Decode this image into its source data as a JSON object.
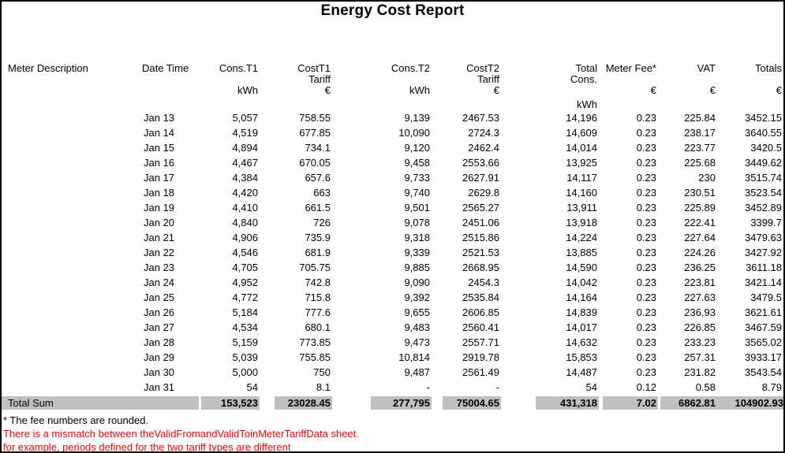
{
  "title": "Energy Cost Report",
  "colors": {
    "total_row_bg": "#c0c0c0",
    "warning_text": "#ff0000",
    "page_border": "#000000"
  },
  "table": {
    "headers": {
      "meter_description": "Meter Description",
      "date_time": "Date Time",
      "cons_t1": "Cons.T1",
      "cost_t1_line1": "CostT1",
      "cost_t1_line2": "Tariff",
      "cons_t2": "Cons.T2",
      "cost_t2_line1": "CostT2",
      "cost_t2_line2": "Tariff",
      "total_line1": "Total",
      "total_line2": "Cons.",
      "meter_fee": "Meter Fee*",
      "vat": "VAT",
      "totals": "Totals",
      "unit_kwh": "kWh",
      "unit_eur": "€"
    },
    "rows": [
      {
        "date": "Jan 13",
        "cons_t1": "5,057",
        "cost_t1": "758.55",
        "cons_t2": "9,139",
        "cost_t2": "2467.53",
        "total_cons": "14,196",
        "meter_fee": "0.23",
        "vat": "225.84",
        "totals": "3452.15"
      },
      {
        "date": "Jan 14",
        "cons_t1": "4,519",
        "cost_t1": "677.85",
        "cons_t2": "10,090",
        "cost_t2": "2724.3",
        "total_cons": "14,609",
        "meter_fee": "0.23",
        "vat": "238.17",
        "totals": "3640.55"
      },
      {
        "date": "Jan 15",
        "cons_t1": "4,894",
        "cost_t1": "734.1",
        "cons_t2": "9,120",
        "cost_t2": "2462.4",
        "total_cons": "14,014",
        "meter_fee": "0.23",
        "vat": "223.77",
        "totals": "3420.5"
      },
      {
        "date": "Jan 16",
        "cons_t1": "4,467",
        "cost_t1": "670.05",
        "cons_t2": "9,458",
        "cost_t2": "2553.66",
        "total_cons": "13,925",
        "meter_fee": "0.23",
        "vat": "225.68",
        "totals": "3449.62"
      },
      {
        "date": "Jan 17",
        "cons_t1": "4,384",
        "cost_t1": "657.6",
        "cons_t2": "9,733",
        "cost_t2": "2627.91",
        "total_cons": "14,117",
        "meter_fee": "0.23",
        "vat": "230",
        "totals": "3515.74"
      },
      {
        "date": "Jan 18",
        "cons_t1": "4,420",
        "cost_t1": "663",
        "cons_t2": "9,740",
        "cost_t2": "2629.8",
        "total_cons": "14,160",
        "meter_fee": "0.23",
        "vat": "230.51",
        "totals": "3523.54"
      },
      {
        "date": "Jan 19",
        "cons_t1": "4,410",
        "cost_t1": "661.5",
        "cons_t2": "9,501",
        "cost_t2": "2565.27",
        "total_cons": "13,911",
        "meter_fee": "0.23",
        "vat": "225.89",
        "totals": "3452.89"
      },
      {
        "date": "Jan 20",
        "cons_t1": "4,840",
        "cost_t1": "726",
        "cons_t2": "9,078",
        "cost_t2": "2451.06",
        "total_cons": "13,918",
        "meter_fee": "0.23",
        "vat": "222.41",
        "totals": "3399.7"
      },
      {
        "date": "Jan 21",
        "cons_t1": "4,906",
        "cost_t1": "735.9",
        "cons_t2": "9,318",
        "cost_t2": "2515.86",
        "total_cons": "14,224",
        "meter_fee": "0.23",
        "vat": "227.64",
        "totals": "3479.63"
      },
      {
        "date": "Jan 22",
        "cons_t1": "4,546",
        "cost_t1": "681.9",
        "cons_t2": "9,339",
        "cost_t2": "2521.53",
        "total_cons": "13,885",
        "meter_fee": "0.23",
        "vat": "224.26",
        "totals": "3427.92"
      },
      {
        "date": "Jan 23",
        "cons_t1": "4,705",
        "cost_t1": "705.75",
        "cons_t2": "9,885",
        "cost_t2": "2668.95",
        "total_cons": "14,590",
        "meter_fee": "0.23",
        "vat": "236.25",
        "totals": "3611.18"
      },
      {
        "date": "Jan 24",
        "cons_t1": "4,952",
        "cost_t1": "742.8",
        "cons_t2": "9,090",
        "cost_t2": "2454.3",
        "total_cons": "14,042",
        "meter_fee": "0.23",
        "vat": "223.81",
        "totals": "3421.14"
      },
      {
        "date": "Jan 25",
        "cons_t1": "4,772",
        "cost_t1": "715.8",
        "cons_t2": "9,392",
        "cost_t2": "2535.84",
        "total_cons": "14,164",
        "meter_fee": "0.23",
        "vat": "227.63",
        "totals": "3479.5"
      },
      {
        "date": "Jan 26",
        "cons_t1": "5,184",
        "cost_t1": "777.6",
        "cons_t2": "9,655",
        "cost_t2": "2606.85",
        "total_cons": "14,839",
        "meter_fee": "0.23",
        "vat": "236.93",
        "totals": "3621.61"
      },
      {
        "date": "Jan 27",
        "cons_t1": "4,534",
        "cost_t1": "680.1",
        "cons_t2": "9,483",
        "cost_t2": "2560.41",
        "total_cons": "14,017",
        "meter_fee": "0.23",
        "vat": "226.85",
        "totals": "3467.59"
      },
      {
        "date": "Jan 28",
        "cons_t1": "5,159",
        "cost_t1": "773.85",
        "cons_t2": "9,473",
        "cost_t2": "2557.71",
        "total_cons": "14,632",
        "meter_fee": "0.23",
        "vat": "233.23",
        "totals": "3565.02"
      },
      {
        "date": "Jan 29",
        "cons_t1": "5,039",
        "cost_t1": "755.85",
        "cons_t2": "10,814",
        "cost_t2": "2919.78",
        "total_cons": "15,853",
        "meter_fee": "0.23",
        "vat": "257.31",
        "totals": "3933.17"
      },
      {
        "date": "Jan 30",
        "cons_t1": "5,000",
        "cost_t1": "750",
        "cons_t2": "9,487",
        "cost_t2": "2561.49",
        "total_cons": "14,487",
        "meter_fee": "0.23",
        "vat": "231.82",
        "totals": "3543.54"
      },
      {
        "date": "Jan 31",
        "cons_t1": "54",
        "cost_t1": "8.1",
        "cons_t2": "-",
        "cost_t2": "-",
        "total_cons": "54",
        "meter_fee": "0.12",
        "vat": "0.58",
        "totals": "8.79"
      }
    ],
    "total_row": {
      "label": "Total Sum",
      "cons_t1": "153,523",
      "cost_t1": "23028.45",
      "cons_t2": "277,795",
      "cost_t2": "75004.65",
      "total_cons": "431,318",
      "meter_fee": "7.02",
      "vat": "6862.81",
      "totals": "104902.93"
    }
  },
  "footnotes": {
    "fee_note": "* The fee numbers are rounded.",
    "warning_line1": "There is a mismatch between theValidFromandValidToinMeterTariffData sheet.",
    "warning_line2": "for example, periods defined for the two tariff types are different"
  }
}
